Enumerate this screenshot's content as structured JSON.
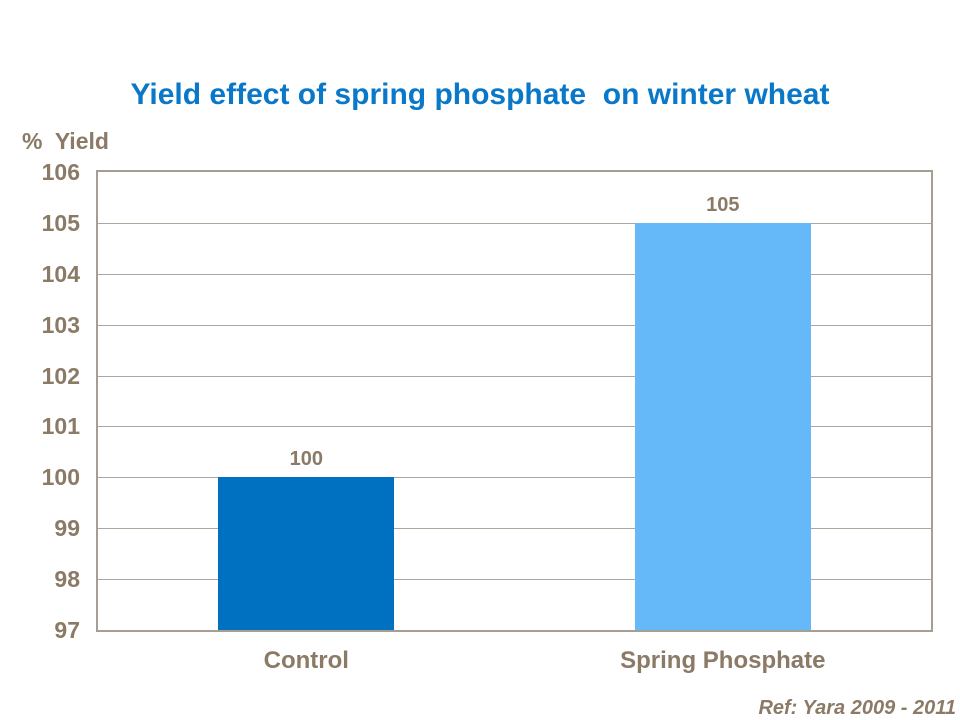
{
  "header": {
    "title": "Yield effect of spring phosphate  on winter wheat"
  },
  "axis": {
    "ylabel": "%  Yield"
  },
  "footer": {
    "reference": "Ref: Yara 2009 - 2011"
  },
  "colors": {
    "title_text": "#0A78C8",
    "axis_text": "#8A7A66",
    "plot_border": "#A69D93",
    "gridline": "#AEA69C",
    "background": "#FFFFFF"
  },
  "chart_data": {
    "type": "bar",
    "title": "Yield effect of spring phosphate on winter wheat",
    "xlabel": "",
    "ylabel": "% Yield",
    "categories": [
      "Control",
      "Spring Phosphate"
    ],
    "values": [
      100,
      105
    ],
    "data_labels": [
      "100",
      "105"
    ],
    "bar_colors": [
      "#0070C0",
      "#66B9F9"
    ],
    "ylim": [
      97,
      106
    ],
    "yticks": [
      97,
      98,
      99,
      100,
      101,
      102,
      103,
      104,
      105,
      106
    ],
    "grid": "horizontal",
    "legend": "none",
    "annotation": "Ref: Yara 2009 - 2011"
  }
}
